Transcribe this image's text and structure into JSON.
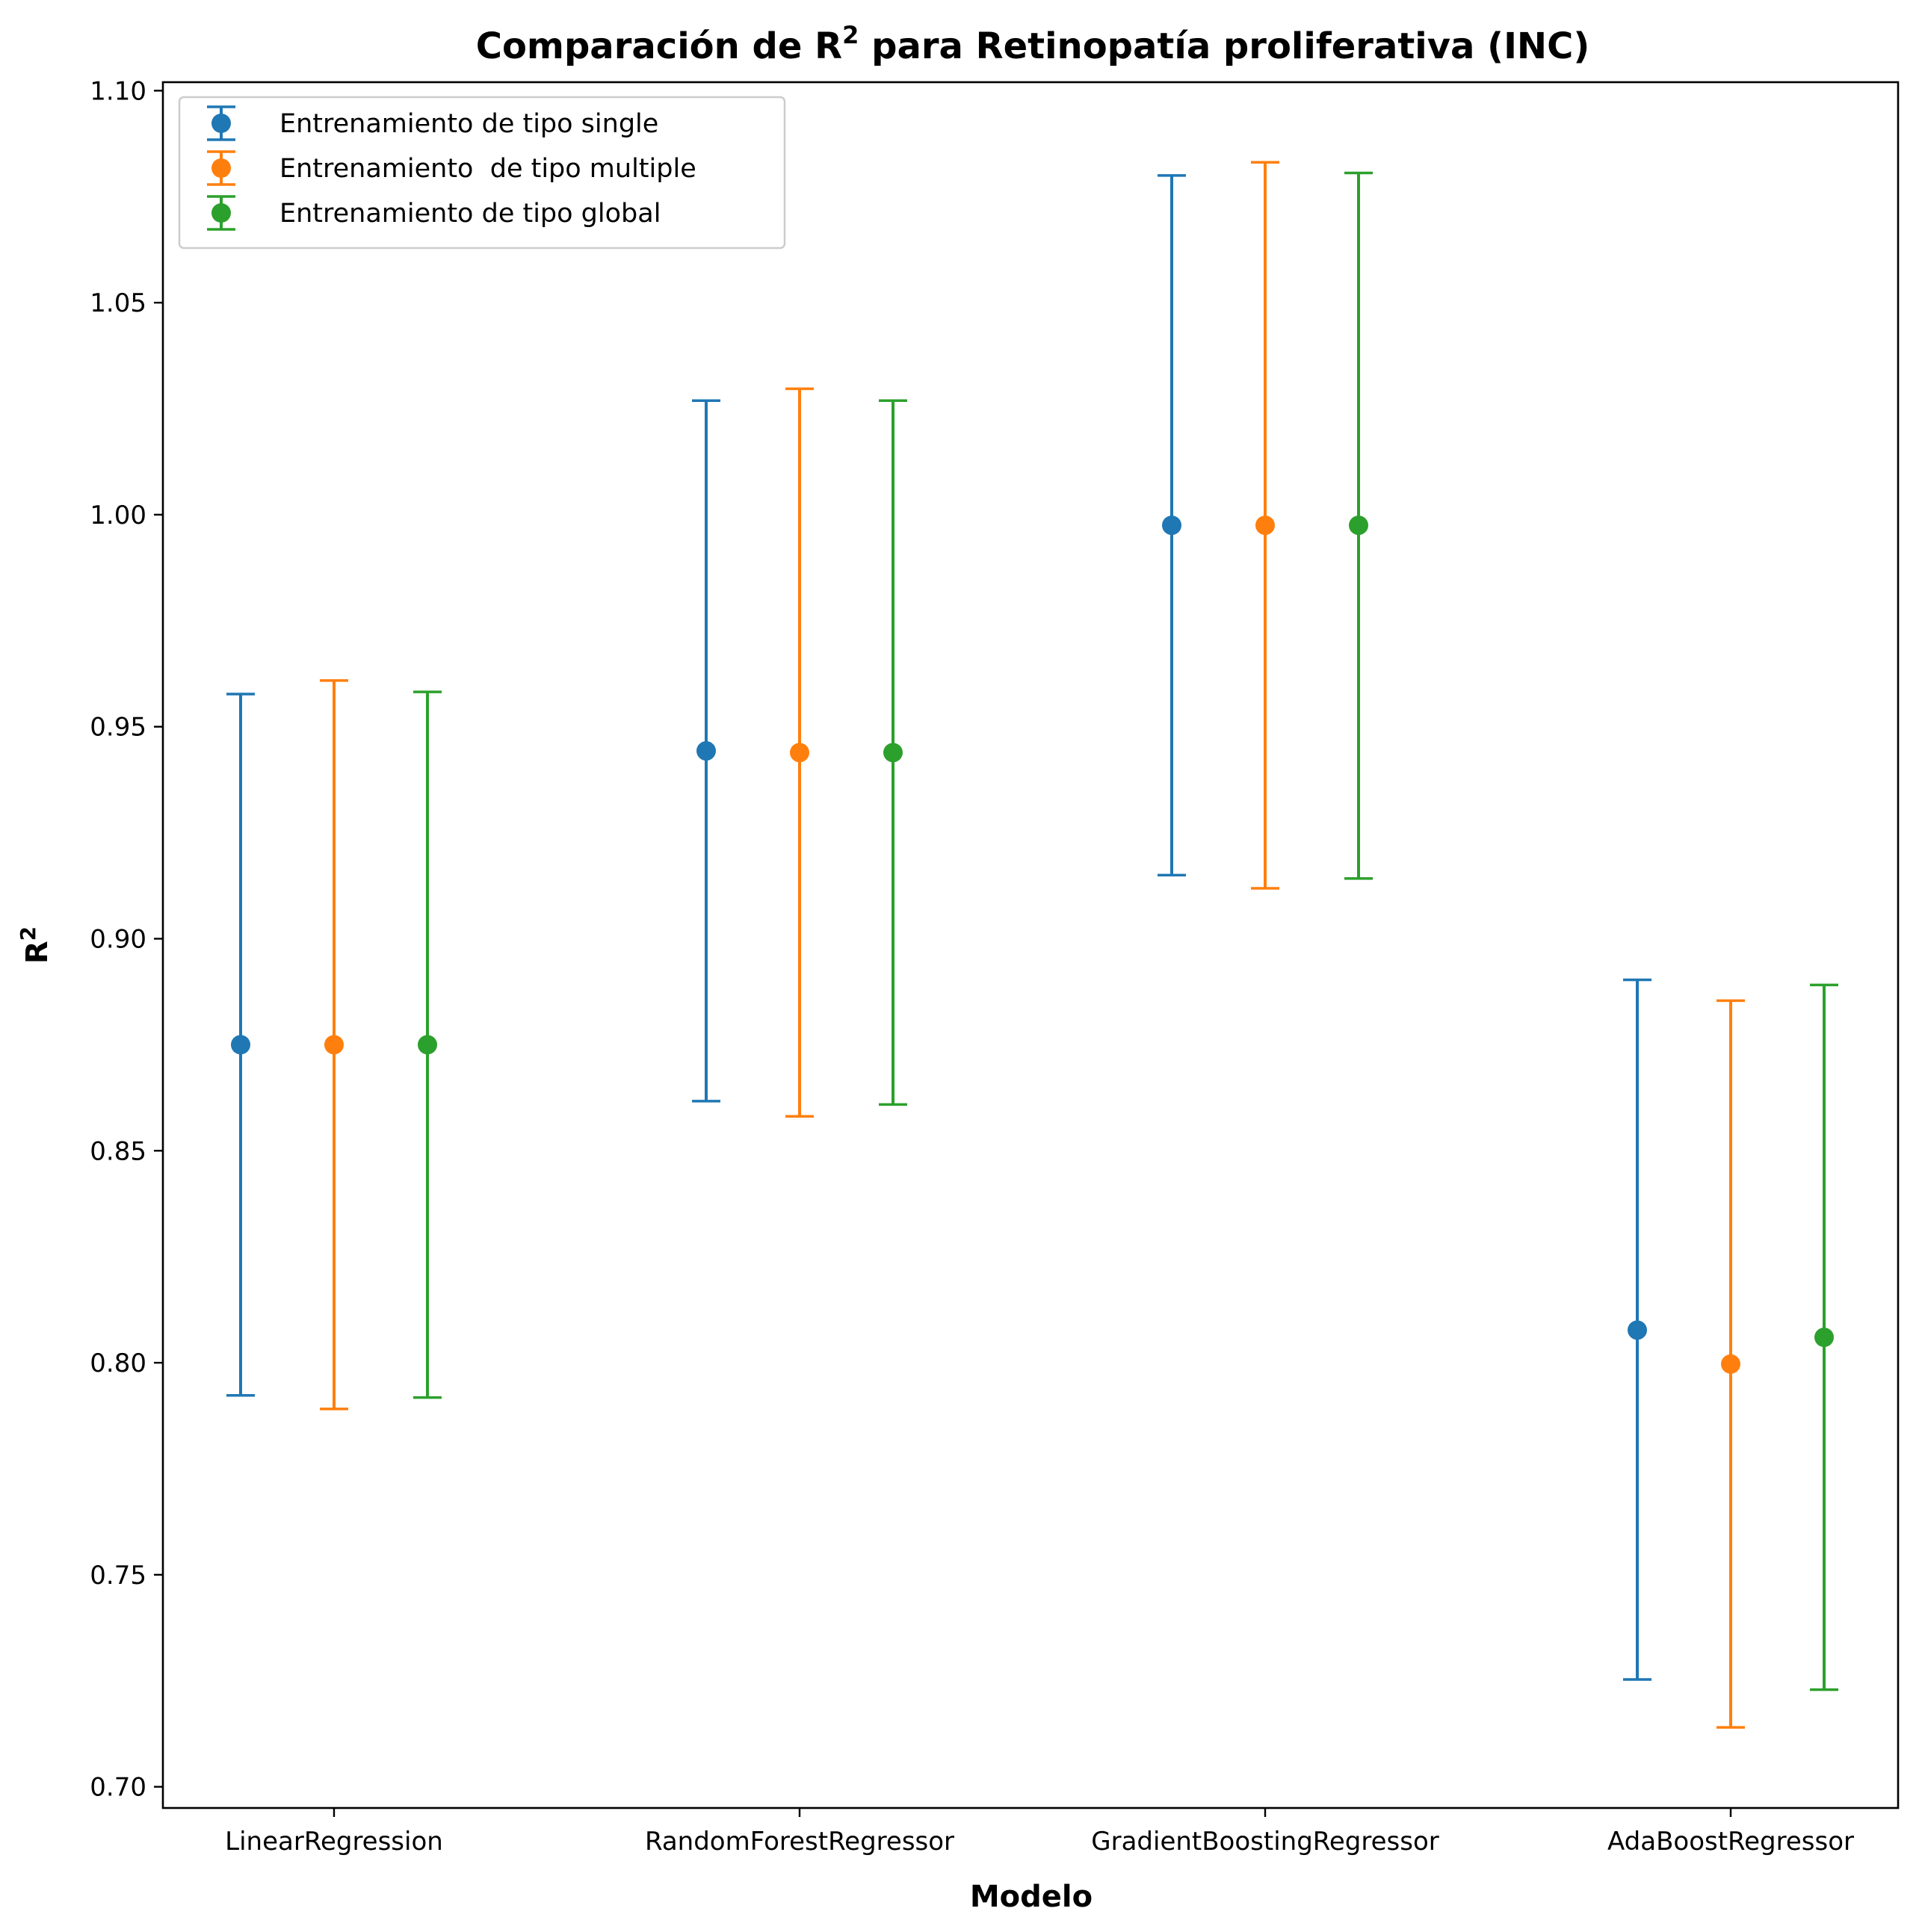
{
  "chart_data": {
    "type": "scatter",
    "title_prefix": "Comparación de R",
    "title_sup": "2",
    "title_suffix": " para Retinopatía proliferativa (INC)",
    "xlabel": "Modelo",
    "ylabel": "R",
    "ylabel_sup": "2",
    "categories": [
      "LinearRegression",
      "RandomForestRegressor",
      "GradientBoostingRegressor",
      "AdaBoostRegressor"
    ],
    "ylim": [
      0.695,
      1.102
    ],
    "yticks": [
      "0.70",
      "0.75",
      "0.80",
      "0.85",
      "0.90",
      "0.95",
      "1.00",
      "1.05",
      "1.10"
    ],
    "grid": false,
    "legend_position": "top-left",
    "series": [
      {
        "name": "Entrenamiento de tipo single",
        "color": "#1f77b4",
        "values": [
          0.875,
          0.9443,
          0.9975,
          0.8077
        ],
        "lower": [
          0.7923,
          0.8617,
          0.915,
          0.7253
        ],
        "upper": [
          0.9577,
          1.0269,
          1.08,
          0.8903
        ]
      },
      {
        "name": "Entrenamiento  de tipo multiple",
        "color": "#ff7f0e",
        "values": [
          0.875,
          0.9439,
          0.9975,
          0.7997
        ],
        "lower": [
          0.7891,
          0.8581,
          0.9119,
          0.714
        ],
        "upper": [
          0.9609,
          1.0297,
          1.0831,
          0.8854
        ]
      },
      {
        "name": "Entrenamiento de tipo global",
        "color": "#2ca02c",
        "values": [
          0.875,
          0.9439,
          0.9975,
          0.806
        ],
        "lower": [
          0.7918,
          0.8609,
          0.9142,
          0.7229
        ],
        "upper": [
          0.9582,
          1.0269,
          1.0806,
          0.8891
        ]
      }
    ]
  }
}
